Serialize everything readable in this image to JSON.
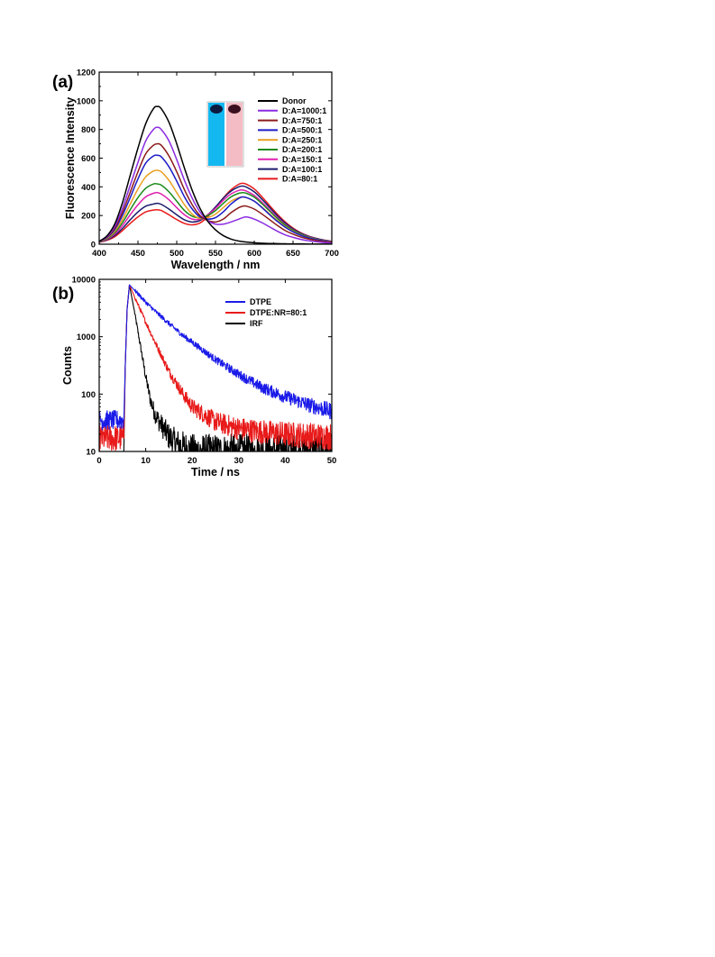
{
  "panel_labels": [
    "(a)",
    "(b)"
  ],
  "chart_data": [
    {
      "type": "line",
      "panel": "(a)",
      "xlabel": "Wavelength / nm",
      "ylabel": "Fluorescence Intensity",
      "xlim": [
        400,
        700
      ],
      "ylim": [
        0,
        1200
      ],
      "xticks": [
        400,
        450,
        500,
        550,
        600,
        650,
        700
      ],
      "yticks": [
        0,
        200,
        400,
        600,
        800,
        1000,
        1200
      ],
      "legend_position": "top-right",
      "inset": "photo of two cuvettes (blue, pink)",
      "x": [
        400,
        410,
        420,
        430,
        440,
        450,
        460,
        470,
        475,
        480,
        490,
        500,
        510,
        520,
        530,
        540,
        550,
        560,
        570,
        580,
        585,
        590,
        600,
        610,
        620,
        630,
        640,
        650,
        660,
        670,
        680,
        690,
        700
      ],
      "series": [
        {
          "name": "Donor",
          "color": "#000000",
          "values": [
            20,
            58,
            140,
            290,
            480,
            670,
            840,
            945,
            960,
            945,
            850,
            700,
            530,
            375,
            250,
            160,
            100,
            60,
            36,
            22,
            18,
            15,
            10,
            7,
            5,
            4,
            3,
            2,
            2,
            1,
            1,
            1,
            0
          ]
        },
        {
          "name": "D:A=1000:1",
          "color": "#8a2be2",
          "values": [
            20,
            53,
            125,
            250,
            410,
            570,
            720,
            800,
            815,
            800,
            720,
            590,
            445,
            320,
            225,
            165,
            140,
            140,
            155,
            175,
            185,
            190,
            175,
            150,
            120,
            90,
            65,
            48,
            34,
            24,
            17,
            12,
            8
          ]
        },
        {
          "name": "D:A=750:1",
          "color": "#8b1a1a",
          "values": [
            19,
            49,
            112,
            222,
            362,
            505,
            630,
            690,
            700,
            690,
            615,
            505,
            380,
            275,
            200,
            165,
            155,
            175,
            220,
            255,
            265,
            265,
            245,
            210,
            170,
            130,
            95,
            70,
            50,
            36,
            26,
            18,
            12
          ]
        },
        {
          "name": "D:A=500:1",
          "color": "#1c1cc8",
          "values": [
            18,
            46,
            102,
            200,
            325,
            455,
            565,
            615,
            620,
            610,
            540,
            440,
            330,
            245,
            190,
            175,
            185,
            225,
            280,
            320,
            330,
            325,
            300,
            255,
            205,
            158,
            118,
            86,
            62,
            44,
            32,
            22,
            15
          ]
        },
        {
          "name": "D:A=250:1",
          "color": "#e8a020",
          "values": [
            17,
            42,
            90,
            172,
            280,
            385,
            470,
            510,
            515,
            505,
            445,
            360,
            275,
            210,
            180,
            185,
            210,
            255,
            300,
            325,
            330,
            325,
            300,
            258,
            210,
            163,
            122,
            89,
            64,
            46,
            33,
            23,
            16
          ]
        },
        {
          "name": "D:A=200:1",
          "color": "#1a8a1a",
          "values": [
            16,
            38,
            80,
            150,
            240,
            325,
            390,
            420,
            420,
            412,
            365,
            300,
            235,
            195,
            185,
            200,
            235,
            285,
            330,
            355,
            360,
            355,
            328,
            282,
            230,
            178,
            133,
            97,
            70,
            50,
            36,
            25,
            17
          ]
        },
        {
          "name": "D:A=150:1",
          "color": "#e020b0",
          "values": [
            15,
            34,
            70,
            130,
            205,
            275,
            330,
            355,
            360,
            350,
            310,
            255,
            205,
            175,
            175,
            205,
            250,
            305,
            350,
            375,
            378,
            370,
            340,
            292,
            238,
            185,
            138,
            100,
            72,
            52,
            37,
            26,
            18
          ]
        },
        {
          "name": "D:A=100:1",
          "color": "#1a1a6e",
          "values": [
            14,
            30,
            60,
            110,
            170,
            225,
            265,
            280,
            285,
            278,
            245,
            205,
            170,
            155,
            165,
            205,
            260,
            320,
            370,
            400,
            405,
            398,
            365,
            313,
            255,
            198,
            148,
            107,
            77,
            55,
            40,
            28,
            19
          ]
        },
        {
          "name": "D:A=80:1",
          "color": "#e81a1a",
          "values": [
            13,
            27,
            52,
            95,
            145,
            190,
            225,
            238,
            240,
            235,
            205,
            172,
            145,
            135,
            148,
            192,
            255,
            322,
            380,
            418,
            425,
            418,
            385,
            330,
            268,
            208,
            155,
            112,
            80,
            57,
            41,
            29,
            20
          ]
        }
      ]
    },
    {
      "type": "line",
      "panel": "(b)",
      "xlabel": "Time / ns",
      "ylabel": "Counts",
      "xlim": [
        0,
        50
      ],
      "ylim": [
        10,
        10000
      ],
      "yscale": "log",
      "xticks": [
        0,
        10,
        20,
        30,
        40,
        50
      ],
      "yticks": [
        10,
        100,
        1000,
        10000
      ],
      "ytick_labels": [
        "10",
        "100",
        "1000",
        "10000"
      ],
      "legend_position": "top-right",
      "series": [
        {
          "name": "DTPE",
          "color": "#1a1ae8",
          "x": [
            0,
            5.3,
            5.6,
            6,
            6.5,
            8,
            10,
            12,
            15,
            18,
            20,
            25,
            30,
            35,
            40,
            45,
            50
          ],
          "values": [
            35,
            35,
            300,
            3000,
            8000,
            6000,
            4000,
            2800,
            1700,
            1050,
            800,
            400,
            220,
            130,
            90,
            65,
            50
          ]
        },
        {
          "name": "DTPE:NR=80:1",
          "color": "#e81a1a",
          "x": [
            0,
            5.3,
            5.6,
            6,
            6.5,
            8,
            10,
            12,
            15,
            18,
            20,
            25,
            30,
            35,
            40,
            45,
            50
          ],
          "values": [
            17,
            17,
            300,
            3000,
            8000,
            4200,
            1800,
            800,
            250,
            100,
            60,
            33,
            25,
            22,
            20,
            19,
            18
          ]
        },
        {
          "name": "IRF",
          "color": "#000000",
          "x": [
            5.3,
            5.6,
            6,
            6.5,
            7.5,
            9,
            10,
            11,
            12,
            13,
            14,
            15,
            16,
            17,
            18,
            19,
            20,
            25,
            30,
            35,
            40,
            45,
            50
          ],
          "values": [
            10,
            300,
            3000,
            8000,
            3000,
            600,
            200,
            80,
            45,
            32,
            24,
            18,
            15,
            13,
            12,
            11,
            10,
            10,
            10,
            10,
            10,
            10,
            10
          ]
        }
      ]
    }
  ]
}
